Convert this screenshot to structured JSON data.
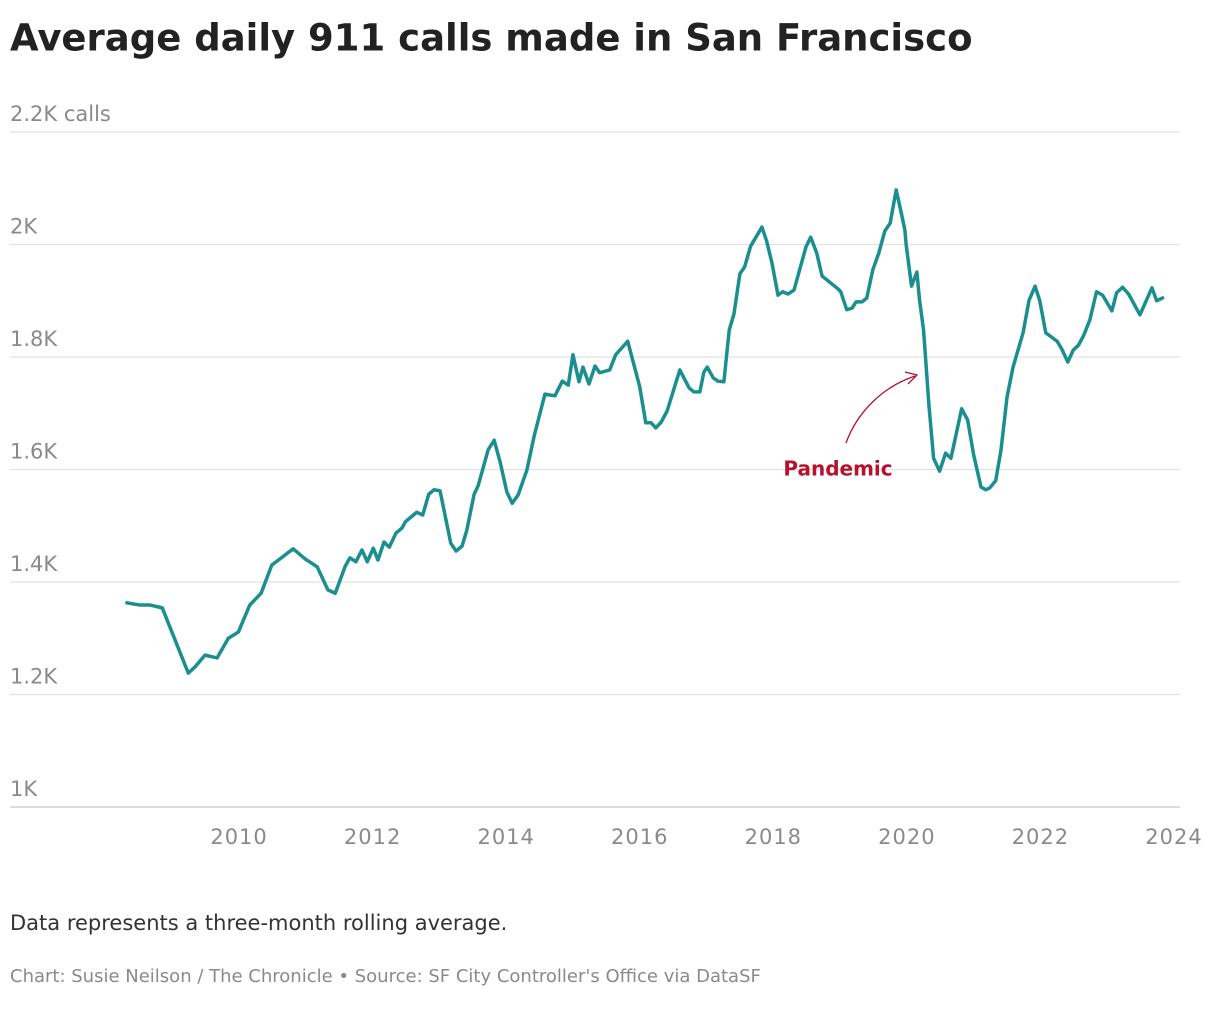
{
  "chart_data": {
    "type": "line",
    "title": "Average daily 911 calls made in San Francisco",
    "note": "Data represents a three-month rolling average.",
    "source": "Chart: Susie Neilson / The Chronicle • Source: SF City Controller's Office via DataSF",
    "annotation": {
      "text": "Pandemic",
      "color": "#b8102d"
    },
    "x": [
      2008.32,
      2008.52,
      2008.67,
      2008.85,
      2009.24,
      2009.34,
      2009.49,
      2009.67,
      2009.84,
      2009.99,
      2010.16,
      2010.33,
      2010.49,
      2010.81,
      2010.99,
      2011.17,
      2011.33,
      2011.44,
      2011.59,
      2011.66,
      2011.75,
      2011.84,
      2011.92,
      2012.01,
      2012.08,
      2012.17,
      2012.25,
      2012.35,
      2012.44,
      2012.49,
      2012.56,
      2012.66,
      2012.75,
      2012.84,
      2012.92,
      2013.01,
      2013.17,
      2013.25,
      2013.34,
      2013.41,
      2013.52,
      2013.58,
      2013.73,
      2013.82,
      2013.91,
      2014.01,
      2014.09,
      2014.18,
      2014.31,
      2014.42,
      2014.58,
      2014.73,
      2014.84,
      2014.93,
      2015.0,
      2015.09,
      2015.15,
      2015.24,
      2015.33,
      2015.4,
      2015.55,
      2015.64,
      2015.82,
      2016.0,
      2016.09,
      2016.17,
      2016.24,
      2016.32,
      2016.41,
      2016.6,
      2016.74,
      2016.81,
      2016.9,
      2016.96,
      2017.01,
      2017.1,
      2017.17,
      2017.26,
      2017.34,
      2017.41,
      2017.5,
      2017.57,
      2017.66,
      2017.74,
      2017.83,
      2017.9,
      2017.98,
      2018.07,
      2018.14,
      2018.22,
      2018.31,
      2018.49,
      2018.56,
      2018.65,
      2018.73,
      2018.97,
      2019.01,
      2019.1,
      2019.18,
      2019.24,
      2019.33,
      2019.4,
      2019.49,
      2019.58,
      2019.67,
      2019.75,
      2019.84,
      2019.9,
      2019.97,
      2019.99,
      2020.07,
      2020.15,
      2020.19,
      2020.25,
      2020.33,
      2020.4,
      2020.49,
      2020.58,
      2020.66,
      2020.82,
      2020.91,
      2021.0,
      2021.11,
      2021.18,
      2021.24,
      2021.33,
      2021.41,
      2021.5,
      2021.59,
      2021.74,
      2021.83,
      2021.92,
      2021.99,
      2022.08,
      2022.25,
      2022.32,
      2022.41,
      2022.49,
      2022.57,
      2022.65,
      2022.74,
      2022.84,
      2022.93,
      2023.07,
      2023.14,
      2023.23,
      2023.32,
      2023.49,
      2023.67,
      2023.74,
      2023.83
    ],
    "series": [
      {
        "color": "#1b8f8f",
        "values": [
          1363,
          1359,
          1359,
          1354,
          1238,
          1249,
          1270,
          1265,
          1300,
          1311,
          1359,
          1380,
          1430,
          1459,
          1441,
          1427,
          1386,
          1380,
          1428,
          1443,
          1436,
          1457,
          1436,
          1460,
          1439,
          1471,
          1462,
          1487,
          1496,
          1507,
          1514,
          1524,
          1519,
          1556,
          1564,
          1562,
          1469,
          1455,
          1464,
          1492,
          1556,
          1571,
          1635,
          1652,
          1613,
          1560,
          1540,
          1555,
          1599,
          1660,
          1734,
          1731,
          1757,
          1750,
          1804,
          1756,
          1782,
          1752,
          1784,
          1772,
          1777,
          1804,
          1828,
          1747,
          1683,
          1683,
          1674,
          1684,
          1704,
          1777,
          1745,
          1738,
          1738,
          1773,
          1782,
          1763,
          1757,
          1756,
          1848,
          1876,
          1948,
          1960,
          1997,
          2013,
          2031,
          2006,
          1967,
          1910,
          1916,
          1912,
          1919,
          1996,
          2013,
          1985,
          1944,
          1921,
          1916,
          1884,
          1887,
          1898,
          1898,
          1905,
          1955,
          1985,
          2024,
          2038,
          2097,
          2065,
          2026,
          1999,
          1926,
          1951,
          1901,
          1848,
          1715,
          1620,
          1597,
          1629,
          1620,
          1708,
          1688,
          1626,
          1569,
          1564,
          1567,
          1580,
          1635,
          1729,
          1782,
          1843,
          1901,
          1926,
          1900,
          1843,
          1828,
          1814,
          1791,
          1812,
          1821,
          1839,
          1866,
          1916,
          1910,
          1882,
          1914,
          1924,
          1912,
          1875,
          1923,
          1900,
          1905
        ]
      }
    ],
    "xlim": [
      2006.57,
      2024.09
    ],
    "xticks": [
      2010,
      2012,
      2014,
      2016,
      2018,
      2020,
      2022,
      2024
    ],
    "ylim": [
      1000,
      2200
    ],
    "yticks": [
      {
        "value": 1000,
        "label": "1K"
      },
      {
        "value": 1200,
        "label": "1.2K"
      },
      {
        "value": 1400,
        "label": "1.4K"
      },
      {
        "value": 1600,
        "label": "1.6K"
      },
      {
        "value": 1800,
        "label": "1.8K"
      },
      {
        "value": 2000,
        "label": "2K"
      },
      {
        "value": 2200,
        "label": "2.2K calls"
      }
    ],
    "grid": true
  }
}
